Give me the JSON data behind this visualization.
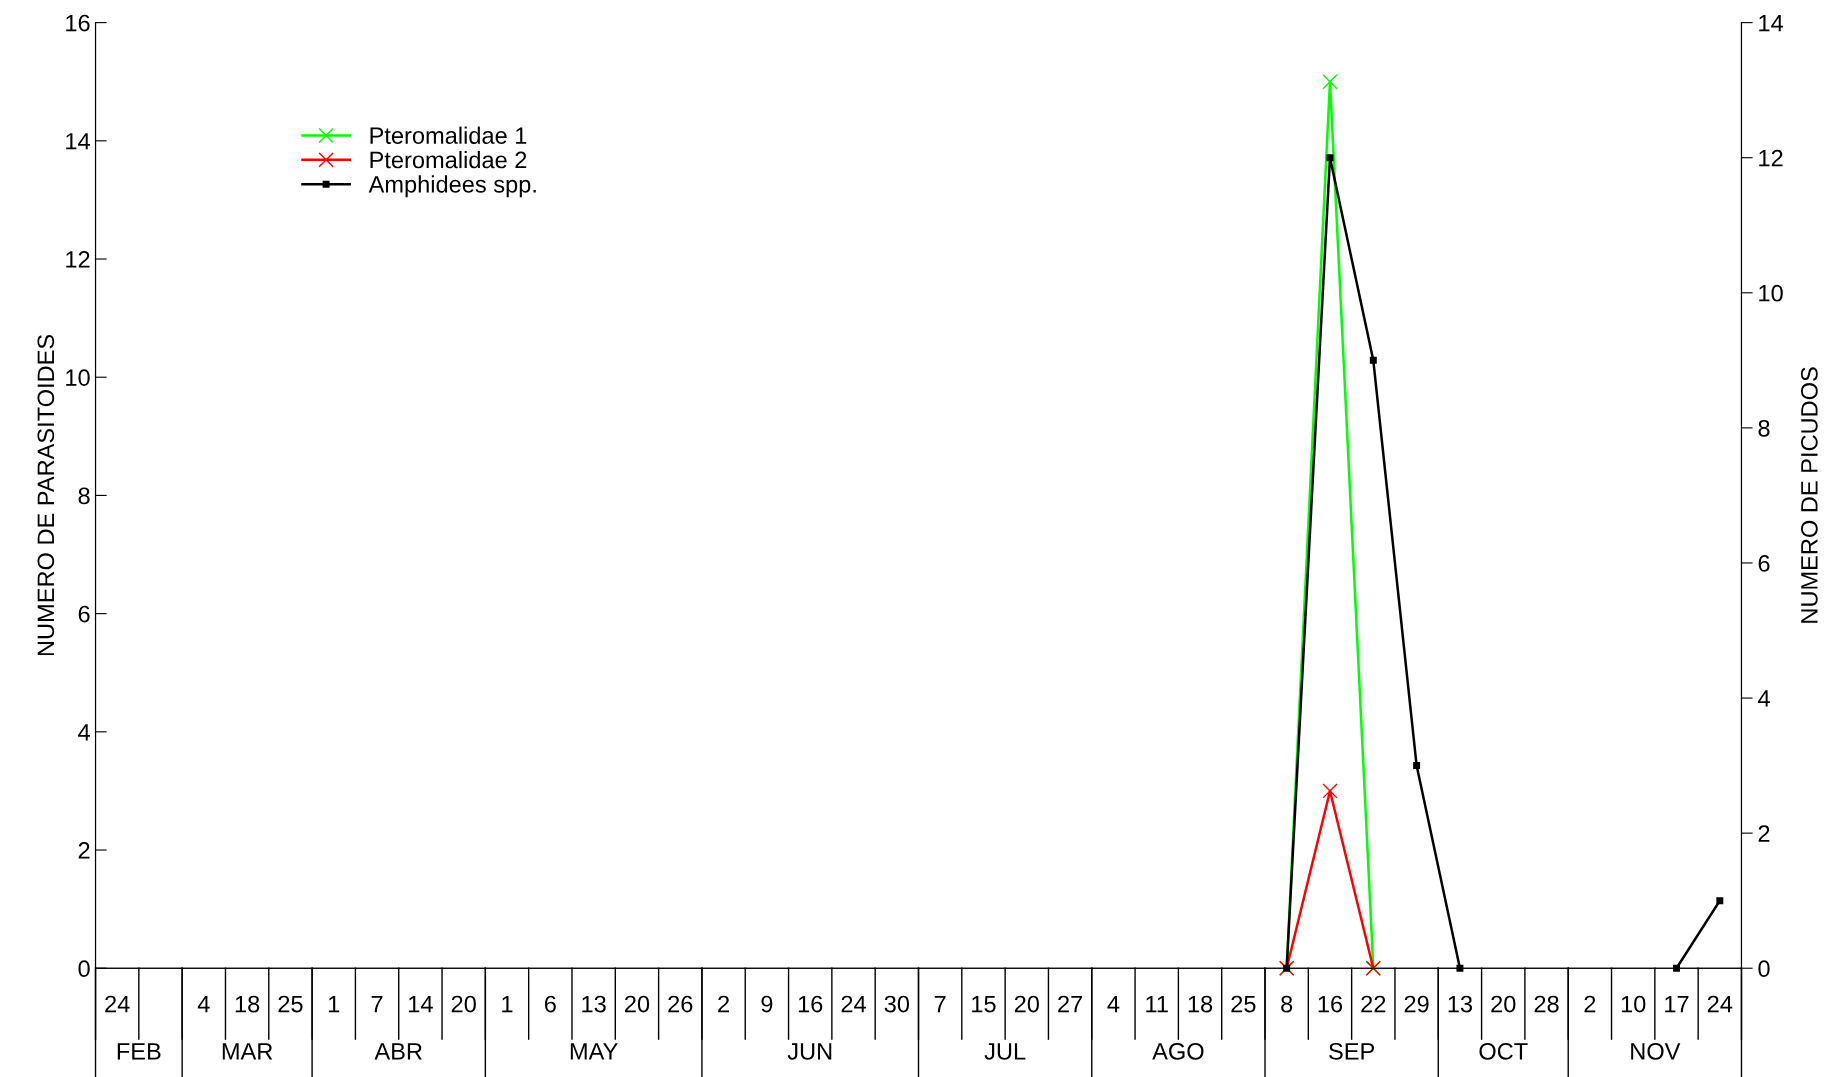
{
  "chart_data": {
    "type": "line",
    "ylabel": "NUMERO DE PARASITOIDES",
    "y2label": "NUMERO DE PICUDOS",
    "categories": [
      "24",
      null,
      "4",
      "18",
      "25",
      "1",
      "7",
      "14",
      "20",
      "1",
      "6",
      "13",
      "20",
      "26",
      "2",
      "9",
      "16",
      "24",
      "30",
      "7",
      "15",
      "20",
      "27",
      "4",
      "11",
      "18",
      "25",
      "8",
      "16",
      "22",
      "29",
      "13",
      "20",
      "28",
      "2",
      "10",
      "17",
      "24"
    ],
    "annotations": [
      "FEB",
      "MAR",
      "ABR",
      "MAY",
      "JUN",
      "JUL",
      "AGO",
      "SEP",
      "OCT",
      "NOV"
    ],
    "series": [
      {
        "name": "Pteromalidae 1",
        "color": "#00ff00",
        "marker": "cross",
        "values": [
          null,
          null,
          null,
          null,
          null,
          null,
          null,
          null,
          null,
          null,
          null,
          null,
          null,
          null,
          null,
          null,
          null,
          null,
          null,
          null,
          null,
          null,
          null,
          null,
          null,
          null,
          null,
          0,
          15,
          0,
          null,
          null,
          null,
          null,
          null,
          null,
          null,
          null
        ]
      },
      {
        "name": "Pteromalidae 2",
        "color": "#ff0000",
        "marker": "cross",
        "values": [
          null,
          null,
          null,
          null,
          null,
          null,
          null,
          null,
          null,
          null,
          null,
          null,
          null,
          null,
          null,
          null,
          null,
          null,
          null,
          null,
          null,
          null,
          null,
          null,
          null,
          null,
          null,
          0,
          3,
          0,
          null,
          null,
          null,
          null,
          null,
          null,
          null,
          null
        ]
      },
      {
        "name": "Amphidees spp.",
        "color": "#000000",
        "marker": "square",
        "axis": "y2",
        "values": [
          null,
          null,
          null,
          null,
          null,
          null,
          null,
          null,
          null,
          null,
          null,
          null,
          null,
          null,
          null,
          null,
          null,
          null,
          null,
          null,
          null,
          null,
          null,
          null,
          null,
          null,
          null,
          0,
          12,
          9,
          3,
          0,
          null,
          null,
          null,
          null,
          0,
          1
        ]
      }
    ],
    "ylim": [
      0,
      16
    ],
    "yticks": [
      0,
      2,
      4,
      6,
      8,
      10,
      12,
      14,
      16
    ],
    "y2lim": [
      0,
      14
    ],
    "y2ticks": [
      0,
      2,
      4,
      6,
      8,
      10,
      12,
      14
    ],
    "legend": "top left",
    "grid": false
  }
}
